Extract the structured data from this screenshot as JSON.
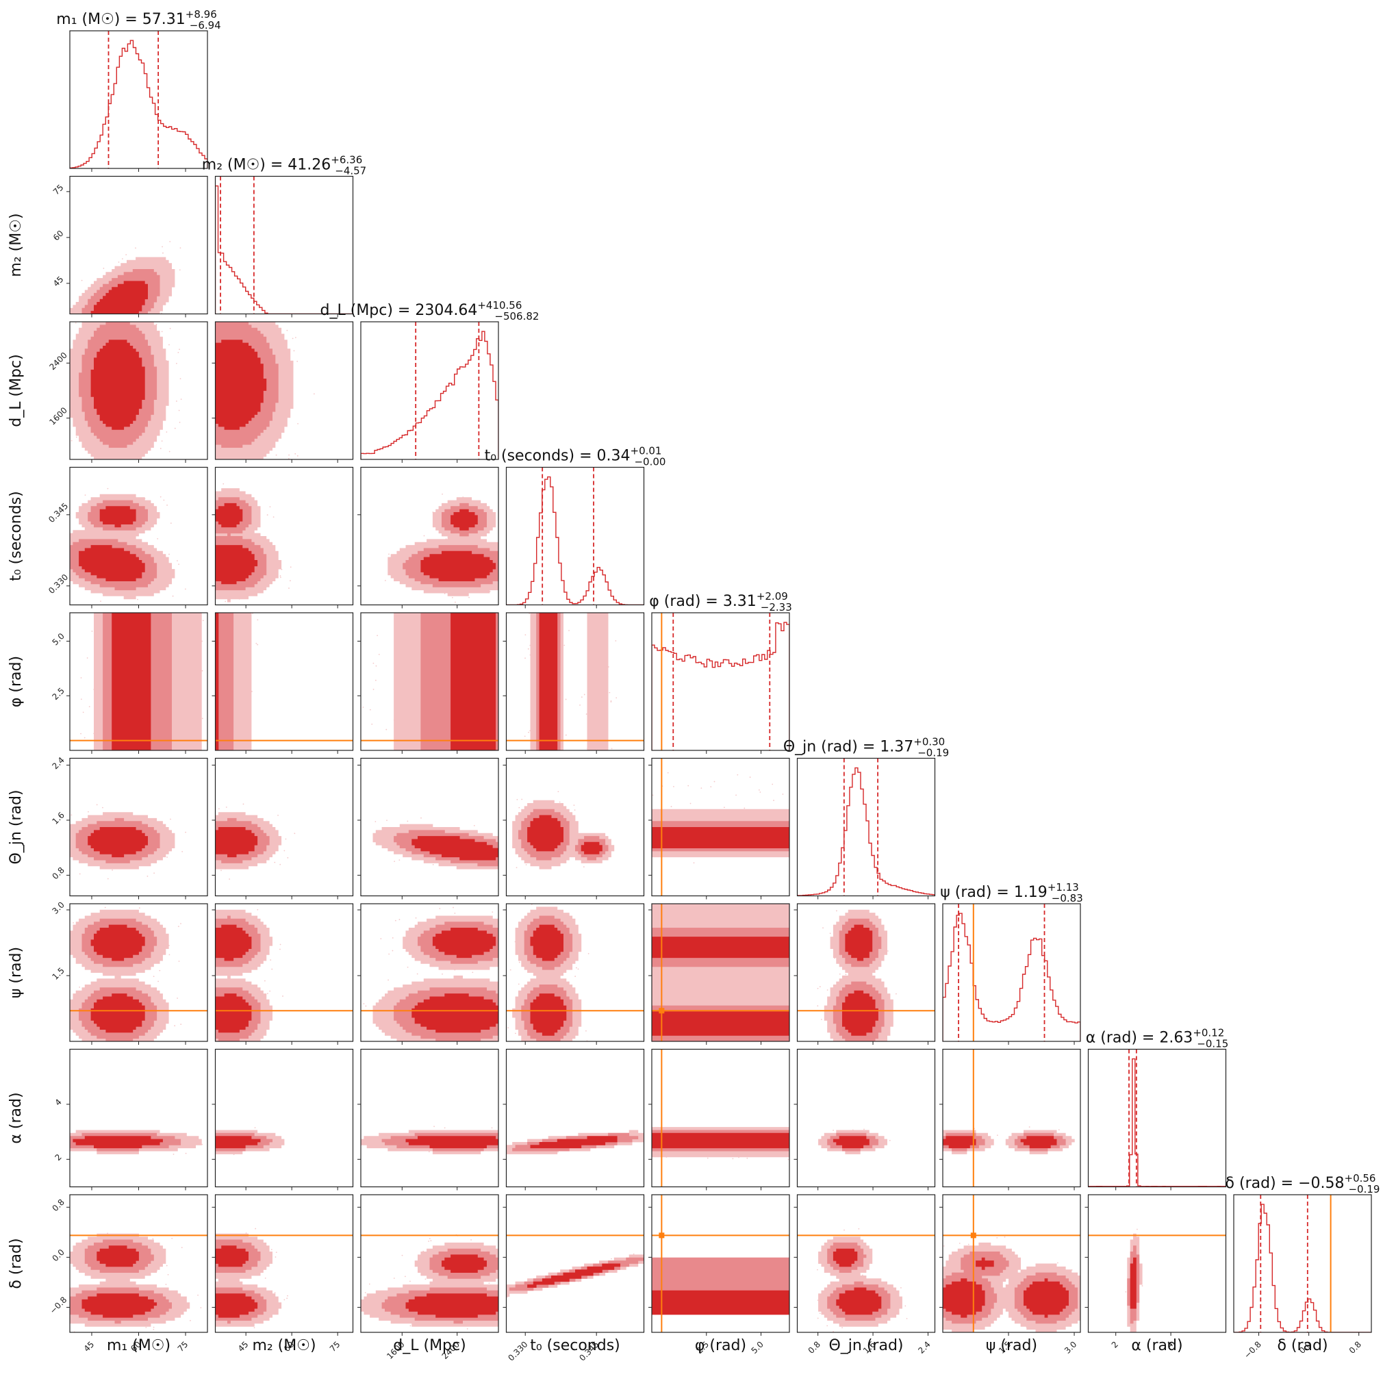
{
  "chart_data": {
    "type": "corner",
    "description_colors": {
      "posterior": "#d62728",
      "posterior_light": "#e8898c",
      "injection": "#ff7f0e",
      "frame": "#222222"
    },
    "parameters": [
      {
        "key": "m1",
        "label": "m₁ (M☉)",
        "lim": [
          38,
          82
        ],
        "ticks": [
          45,
          60,
          75
        ],
        "tick_labels": [
          "45",
          "60",
          "75"
        ],
        "title": "m₁ (M☉) = 57.31",
        "title_plus": "+8.96",
        "title_minus": "−6.94",
        "median": 57.31,
        "q_low": 50.37,
        "q_high": 66.27,
        "hist_shape": "m1"
      },
      {
        "key": "m2",
        "label": "m₂ (M☉)",
        "lim": [
          35,
          80
        ],
        "ticks": [
          45,
          60,
          75
        ],
        "tick_labels": [
          "45",
          "60",
          "75"
        ],
        "title": "m₂ (M☉) = 41.26",
        "title_plus": "+6.36",
        "title_minus": "−4.57",
        "median": 41.26,
        "q_low": 36.69,
        "q_high": 47.62,
        "hist_shape": "m2"
      },
      {
        "key": "dL",
        "label": "d_L (Mpc)",
        "lim": [
          1000,
          3000
        ],
        "ticks": [
          1600,
          2400
        ],
        "tick_labels": [
          "1600",
          "2400"
        ],
        "title": "d_L (Mpc) = 2304.64",
        "title_plus": "+410.56",
        "title_minus": "−506.82",
        "median": 2304.64,
        "q_low": 1797.82,
        "q_high": 2715.2,
        "hist_shape": "dL"
      },
      {
        "key": "t0",
        "label": "t₀ (seconds)",
        "lim": [
          0.326,
          0.355
        ],
        "ticks": [
          0.33,
          0.345
        ],
        "tick_labels": [
          "0.330",
          "0.345"
        ],
        "title": "t₀ (seconds) = 0.34",
        "title_plus": "+0.01",
        "title_minus": "−0.00",
        "median": 0.3375,
        "q_low": 0.3336,
        "q_high": 0.3444,
        "hist_shape": "t0"
      },
      {
        "key": "phi",
        "label": "φ (rad)",
        "lim": [
          0,
          6.3
        ],
        "ticks": [
          2.5,
          5.0
        ],
        "tick_labels": [
          "2.5",
          "5.0"
        ],
        "title": "φ (rad) = 3.31",
        "title_plus": "+2.09",
        "title_minus": "−2.33",
        "median": 3.31,
        "q_low": 0.98,
        "q_high": 5.4,
        "hist_shape": "phi",
        "truth": 0.45
      },
      {
        "key": "theta",
        "label": "Θ_jn (rad)",
        "lim": [
          0.5,
          2.5
        ],
        "ticks": [
          0.8,
          1.6,
          2.4
        ],
        "tick_labels": [
          "0.8",
          "1.6",
          "2.4"
        ],
        "title": "Θ_jn (rad) = 1.37",
        "title_plus": "+0.30",
        "title_minus": "−0.19",
        "median": 1.37,
        "q_low": 1.18,
        "q_high": 1.67,
        "hist_shape": "theta"
      },
      {
        "key": "psi",
        "label": "ψ (rad)",
        "lim": [
          0,
          3.14
        ],
        "ticks": [
          1.5,
          3.0
        ],
        "tick_labels": [
          "1.5",
          "3.0"
        ],
        "title": "ψ (rad) = 1.19",
        "title_plus": "+1.13",
        "title_minus": "−0.83",
        "median": 1.19,
        "q_low": 0.36,
        "q_high": 2.32,
        "hist_shape": "psi",
        "truth": 0.7
      },
      {
        "key": "alpha",
        "label": "α (rad)",
        "lim": [
          1.0,
          6.0
        ],
        "ticks": [
          2,
          4
        ],
        "tick_labels": [
          "2",
          "4"
        ],
        "title": "α (rad) = 2.63",
        "title_plus": "+0.12",
        "title_minus": "−0.15",
        "median": 2.63,
        "q_low": 2.48,
        "q_high": 2.75,
        "hist_shape": "alpha"
      },
      {
        "key": "delta",
        "label": "δ (rad)",
        "lim": [
          -1.2,
          1.0
        ],
        "ticks": [
          -0.8,
          0.0,
          0.8
        ],
        "tick_labels": [
          "−0.8",
          "0.0",
          "0.8"
        ],
        "title": "δ (rad) = −0.58",
        "title_plus": "+0.56",
        "title_minus": "−0.19",
        "median": -0.58,
        "q_low": -0.77,
        "q_high": -0.02,
        "hist_shape": "delta",
        "truth": 0.35
      }
    ]
  }
}
